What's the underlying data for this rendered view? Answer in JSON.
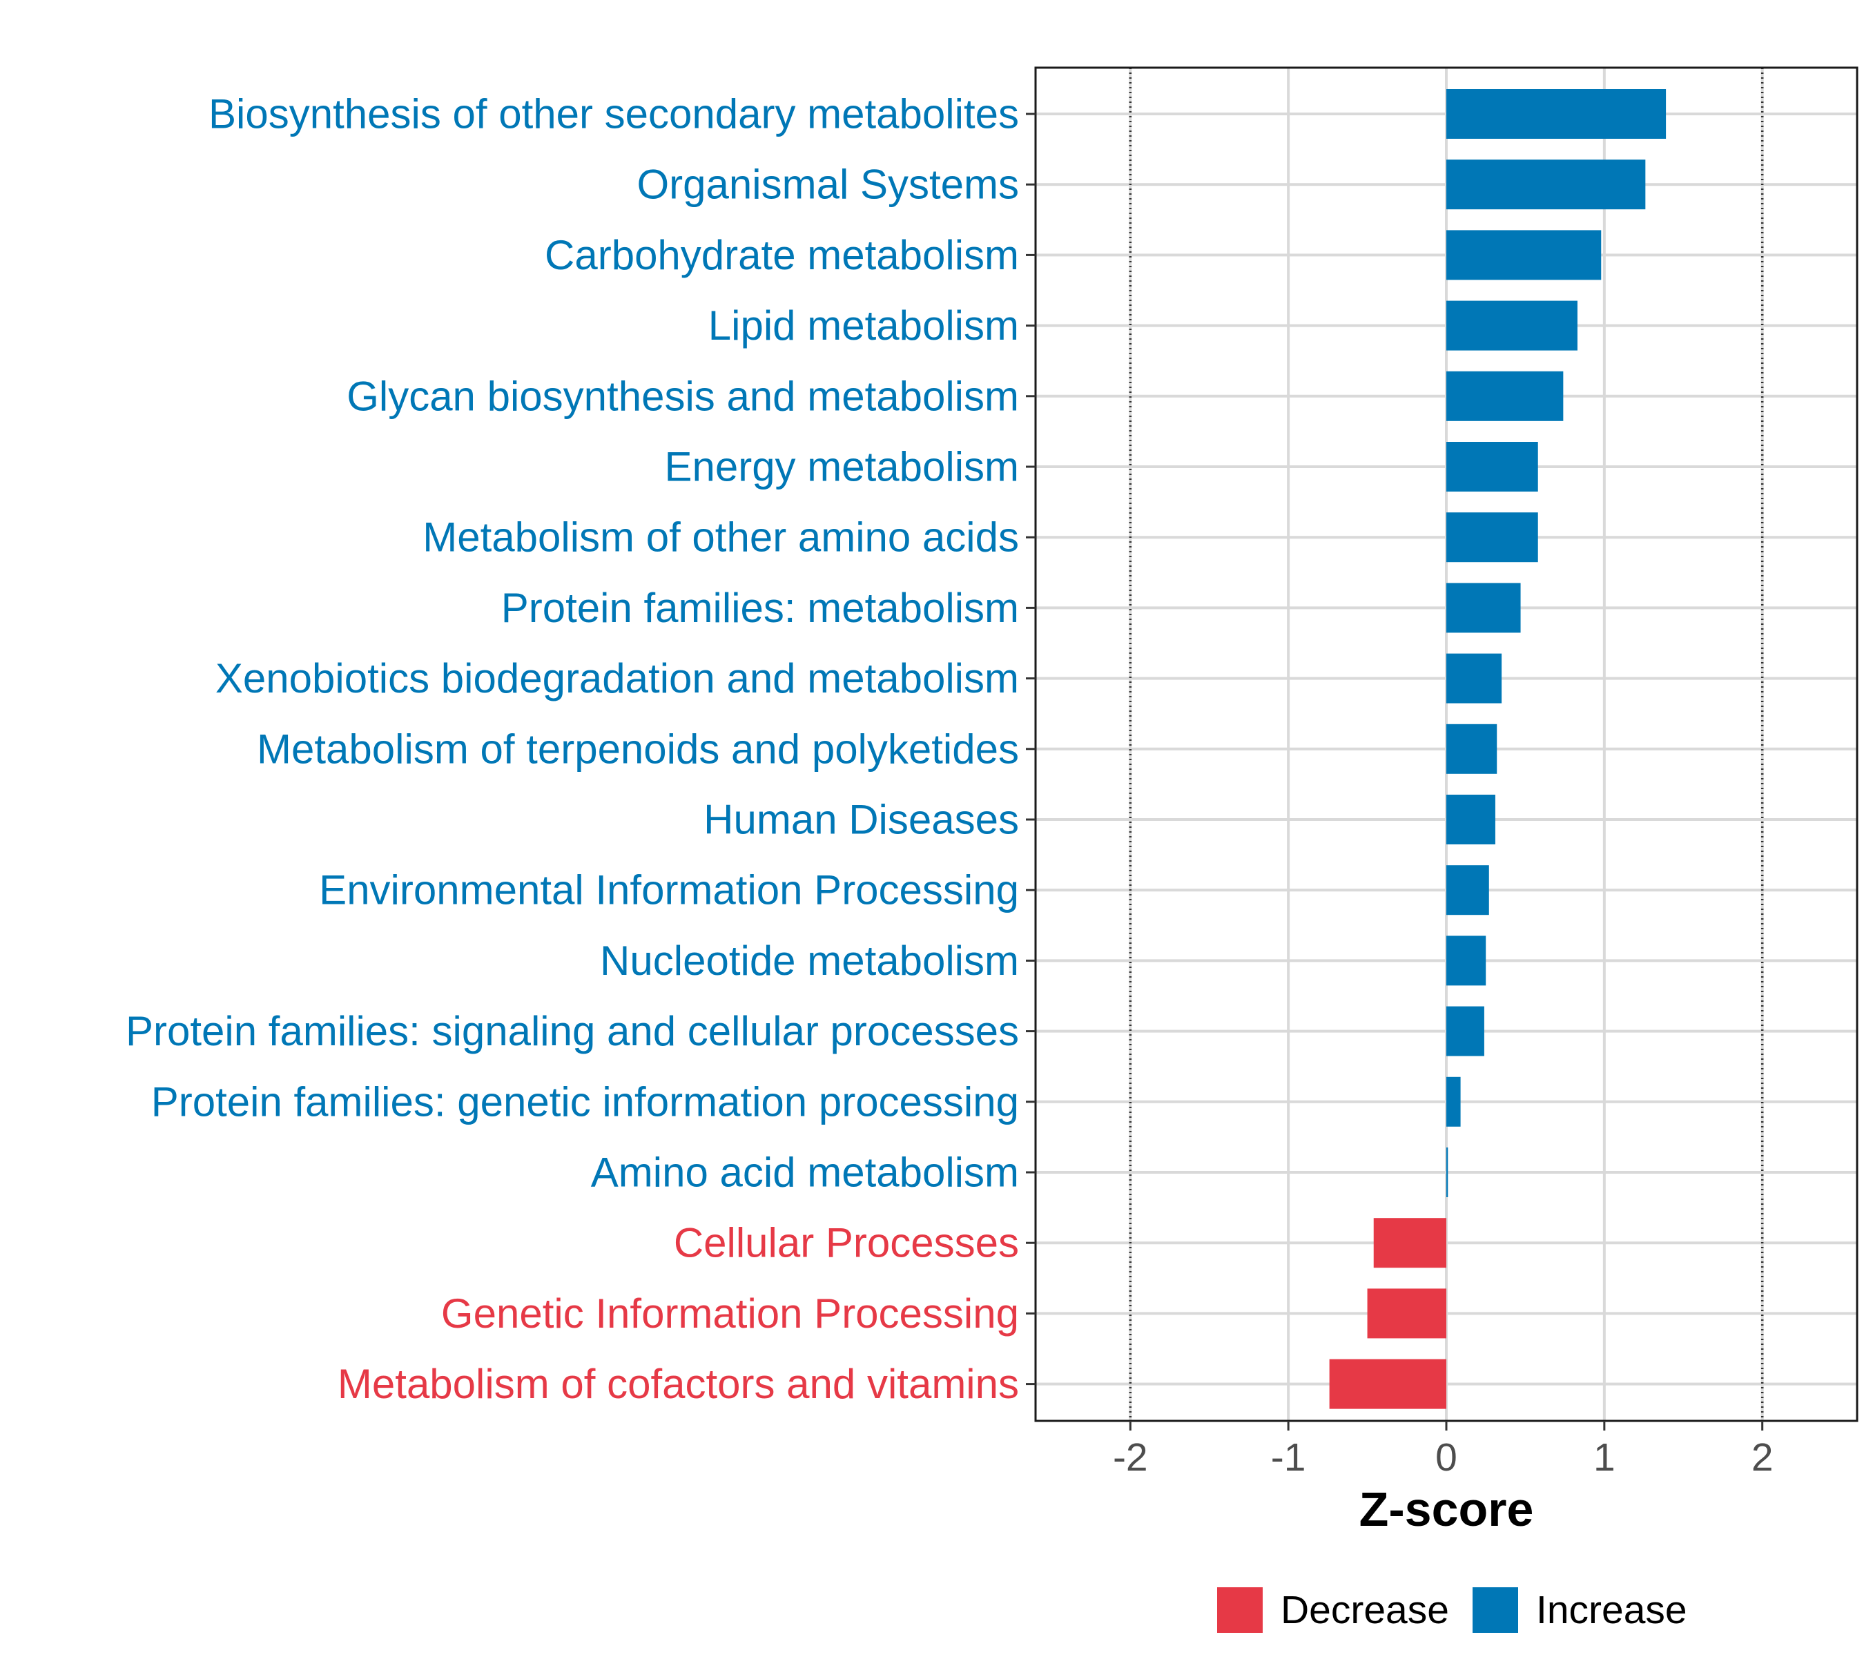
{
  "chart_data": {
    "type": "bar",
    "orientation": "horizontal",
    "xlabel": "Z-score",
    "xlim": [
      -2.6,
      2.6
    ],
    "xticks": [
      -2,
      -1,
      0,
      1,
      2
    ],
    "xtick_labels": [
      "-2",
      "-1",
      "0",
      "1",
      "2"
    ],
    "reference_lines": [
      -2,
      2
    ],
    "grid": true,
    "categories": [
      "Biosynthesis of other secondary metabolites",
      "Organismal Systems",
      "Carbohydrate metabolism",
      "Lipid metabolism",
      "Glycan biosynthesis and metabolism",
      "Energy metabolism",
      "Metabolism of other amino acids",
      "Protein families: metabolism",
      "Xenobiotics biodegradation and metabolism",
      "Metabolism of terpenoids and polyketides",
      "Human Diseases",
      "Environmental Information Processing",
      "Nucleotide metabolism",
      "Protein families: signaling and cellular processes",
      "Protein families: genetic information processing",
      "Amino acid metabolism",
      "Cellular Processes",
      "Genetic Information Processing",
      "Metabolism of cofactors and vitamins"
    ],
    "values": [
      1.39,
      1.26,
      0.98,
      0.83,
      0.74,
      0.58,
      0.58,
      0.47,
      0.35,
      0.32,
      0.31,
      0.27,
      0.25,
      0.24,
      0.09,
      0.01,
      -0.46,
      -0.5,
      -0.74
    ],
    "groups": [
      "Increase",
      "Increase",
      "Increase",
      "Increase",
      "Increase",
      "Increase",
      "Increase",
      "Increase",
      "Increase",
      "Increase",
      "Increase",
      "Increase",
      "Increase",
      "Increase",
      "Increase",
      "Increase",
      "Decrease",
      "Decrease",
      "Decrease"
    ],
    "legend": {
      "position": "bottom",
      "entries": [
        {
          "name": "Decrease",
          "color": "#E63946"
        },
        {
          "name": "Increase",
          "color": "#0077B6"
        }
      ]
    },
    "colors": {
      "Increase": "#0077B6",
      "Decrease": "#E63946"
    }
  }
}
